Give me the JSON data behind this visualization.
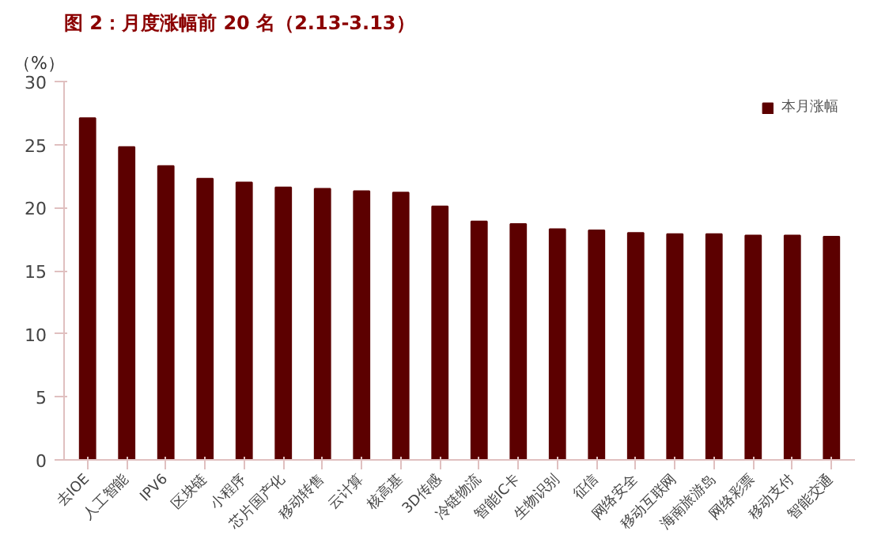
{
  "chart_data": {
    "type": "bar",
    "title": "图 2：月度涨幅前 20 名（2.13-3.13）",
    "ylabel": "（%）",
    "categories": [
      "去IOE",
      "人工智能",
      "IPV6",
      "区块链",
      "小程序",
      "芯片国产化",
      "移动转售",
      "云计算",
      "核高基",
      "3D传感",
      "冷链物流",
      "智能IC卡",
      "生物识别",
      "征信",
      "网络安全",
      "移动互联网",
      "海南旅游岛",
      "网络彩票",
      "移动支付",
      "智能交通"
    ],
    "series": [
      {
        "name": "本月涨幅",
        "color": "#5c0000",
        "values": [
          27.1,
          24.8,
          23.3,
          22.3,
          22.0,
          21.6,
          21.5,
          21.3,
          21.2,
          20.1,
          18.9,
          18.7,
          18.3,
          18.2,
          18.0,
          17.9,
          17.9,
          17.8,
          17.8,
          17.7
        ]
      }
    ],
    "ylim": [
      0,
      30
    ],
    "yticks": [
      0,
      5,
      10,
      15,
      20,
      25,
      30
    ],
    "grid": false,
    "legend": "top right"
  }
}
